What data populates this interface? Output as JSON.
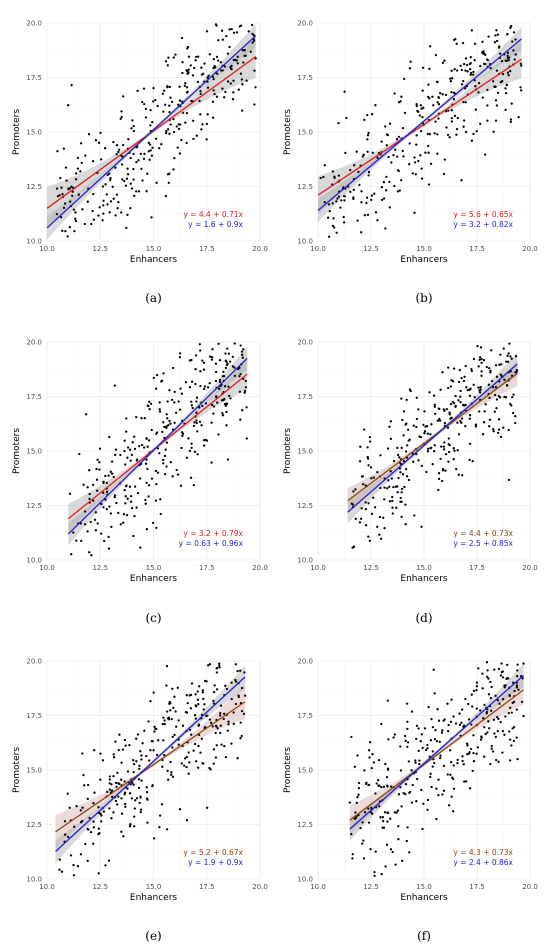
{
  "figure": {
    "background": "#ffffff"
  },
  "chart_data": [
    {
      "type": "scatter",
      "caption": "(a)",
      "xlabel": "Enhancers",
      "ylabel": "Promoters",
      "xlim": [
        10.0,
        20.0
      ],
      "ylim": [
        10.0,
        20.0
      ],
      "xticks": [
        "10.0",
        "12.5",
        "15.0",
        "17.5",
        "20.0"
      ],
      "yticks": [
        "10.0",
        "12.5",
        "15.0",
        "17.5",
        "20.0"
      ],
      "grid": true,
      "seed": 11,
      "x_range": [
        10.0,
        19.8
      ],
      "point_count": 330,
      "fits": [
        {
          "label": "y = 4.4 + 0.71x",
          "intercept": 4.4,
          "slope": 0.71,
          "color": "#e41a1c",
          "band": 0.9,
          "band_color": "#aaaaaa"
        },
        {
          "label": "y = 1.6 + 0.9x",
          "intercept": 1.6,
          "slope": 0.9,
          "color": "#1f1fcc",
          "band": 0.45,
          "band_color": "#aaaaaa"
        }
      ]
    },
    {
      "type": "scatter",
      "caption": "(b)",
      "xlabel": "Enhancers",
      "ylabel": "Promoters",
      "xlim": [
        10.0,
        20.0
      ],
      "ylim": [
        10.0,
        20.0
      ],
      "xticks": [
        "10.0",
        "12.5",
        "15.0",
        "17.5",
        "20.0"
      ],
      "yticks": [
        "10.0",
        "12.5",
        "15.0",
        "17.5",
        "20.0"
      ],
      "grid": true,
      "seed": 23,
      "x_range": [
        10.0,
        19.6
      ],
      "point_count": 330,
      "fits": [
        {
          "label": "y = 5.6 + 0.65x",
          "intercept": 5.6,
          "slope": 0.65,
          "color": "#e41a1c",
          "band": 0.8,
          "band_color": "#aaaaaa"
        },
        {
          "label": "y = 3.2 + 0.82x",
          "intercept": 3.2,
          "slope": 0.82,
          "color": "#1f1fcc",
          "band": 0.45,
          "band_color": "#aaaaaa"
        }
      ]
    },
    {
      "type": "scatter",
      "caption": "(c)",
      "xlabel": "Enhancers",
      "ylabel": "Promoters",
      "xlim": [
        10.0,
        20.0
      ],
      "ylim": [
        10.0,
        20.0
      ],
      "xticks": [
        "10.0",
        "12.5",
        "15.0",
        "17.5",
        "20.0"
      ],
      "yticks": [
        "10.0",
        "12.5",
        "15.0",
        "17.5",
        "20.0"
      ],
      "grid": true,
      "seed": 37,
      "x_range": [
        11.0,
        19.4
      ],
      "point_count": 330,
      "fits": [
        {
          "label": "y = 3.2 + 0.79x",
          "intercept": 3.2,
          "slope": 0.79,
          "color": "#e41a1c",
          "band": 0.6,
          "band_color": "#aaaaaa"
        },
        {
          "label": "y = 0.63 + 0.96x",
          "intercept": 0.63,
          "slope": 0.96,
          "color": "#1f1fcc",
          "band": 0.45,
          "band_color": "#aaaaaa"
        }
      ]
    },
    {
      "type": "scatter",
      "caption": "(d)",
      "xlabel": "Enhancers",
      "ylabel": "Promoters",
      "xlim": [
        10.0,
        20.0
      ],
      "ylim": [
        10.0,
        20.0
      ],
      "xticks": [
        "10.0",
        "12.5",
        "15.0",
        "17.5",
        "20.0"
      ],
      "yticks": [
        "10.0",
        "12.5",
        "15.0",
        "17.5",
        "20.0"
      ],
      "grid": true,
      "seed": 41,
      "x_range": [
        11.4,
        19.4
      ],
      "point_count": 330,
      "fits": [
        {
          "label": "y = 4.4 + 0.73x",
          "intercept": 4.4,
          "slope": 0.73,
          "color": "#8b4513",
          "band": 0.5,
          "band_color": "#c8a8a8"
        },
        {
          "label": "y = 2.5 + 0.85x",
          "intercept": 2.5,
          "slope": 0.85,
          "color": "#1f1fcc",
          "band": 0.45,
          "band_color": "#aaaaaa"
        }
      ]
    },
    {
      "type": "scatter",
      "caption": "(e)",
      "xlabel": "Enhancers",
      "ylabel": "Promoters",
      "xlim": [
        10.0,
        20.0
      ],
      "ylim": [
        10.0,
        20.0
      ],
      "xticks": [
        "10.0",
        "12.5",
        "15.0",
        "17.5",
        "20.0"
      ],
      "yticks": [
        "10.0",
        "12.5",
        "15.0",
        "17.5",
        "20.0"
      ],
      "grid": true,
      "seed": 53,
      "x_range": [
        10.4,
        19.3
      ],
      "point_count": 330,
      "fits": [
        {
          "label": "y = 5.2 + 0.67x",
          "intercept": 5.2,
          "slope": 0.67,
          "color": "#8b4513",
          "band": 0.7,
          "band_color": "#d8b0b0"
        },
        {
          "label": "y = 1.9 + 0.9x",
          "intercept": 1.9,
          "slope": 0.9,
          "color": "#1f1fcc",
          "band": 0.45,
          "band_color": "#aaaaaa"
        }
      ]
    },
    {
      "type": "scatter",
      "caption": "(f)",
      "xlabel": "Enhancers",
      "ylabel": "Promoters",
      "xlim": [
        10.0,
        20.0
      ],
      "ylim": [
        10.0,
        20.0
      ],
      "xticks": [
        "10.0",
        "12.5",
        "15.0",
        "17.5",
        "20.0"
      ],
      "yticks": [
        "10.0",
        "12.5",
        "15.0",
        "17.5",
        "20.0"
      ],
      "grid": true,
      "seed": 67,
      "x_range": [
        11.5,
        19.7
      ],
      "point_count": 330,
      "fits": [
        {
          "label": "y = 4.3 + 0.73x",
          "intercept": 4.3,
          "slope": 0.73,
          "color": "#8b4513",
          "band": 0.6,
          "band_color": "#d8b0b0"
        },
        {
          "label": "y = 2.4 + 0.86x",
          "intercept": 2.4,
          "slope": 0.86,
          "color": "#1f1fcc",
          "band": 0.45,
          "band_color": "#aaaaaa"
        }
      ]
    }
  ]
}
